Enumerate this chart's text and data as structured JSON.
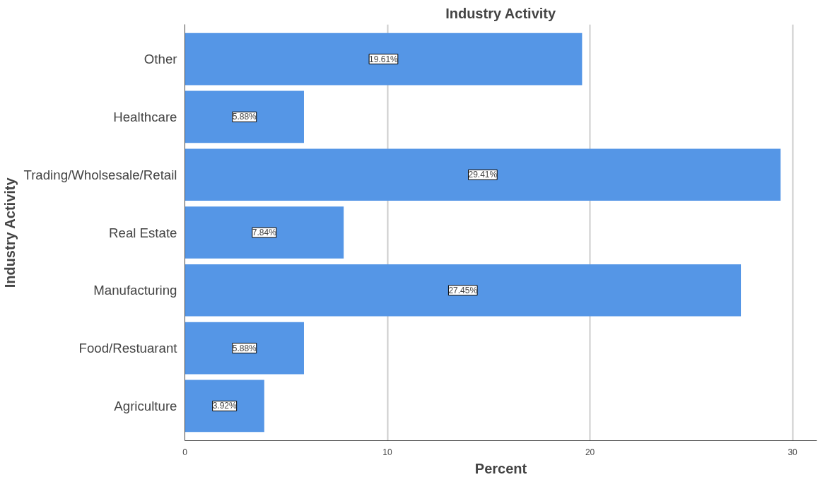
{
  "chart_data": {
    "type": "bar",
    "orientation": "horizontal",
    "title": "Industry Activity",
    "xlabel": "Percent",
    "ylabel": "Industry Activity",
    "categories": [
      "Other",
      "Healthcare",
      "Trading/Wholsesale/Retail",
      "Real Estate",
      "Manufacturing",
      "Food/Restuarant",
      "Agriculture"
    ],
    "values": [
      19.61,
      5.88,
      29.41,
      7.84,
      27.45,
      5.88,
      3.92
    ],
    "value_labels": [
      "19.61%",
      "5.88%",
      "29.41%",
      "7.84%",
      "27.45%",
      "5.88%",
      "3.92%"
    ],
    "color": "#5596e6",
    "xlim": [
      0,
      31.2
    ],
    "xticks": [
      0,
      10,
      20,
      30
    ],
    "grid": "x"
  }
}
